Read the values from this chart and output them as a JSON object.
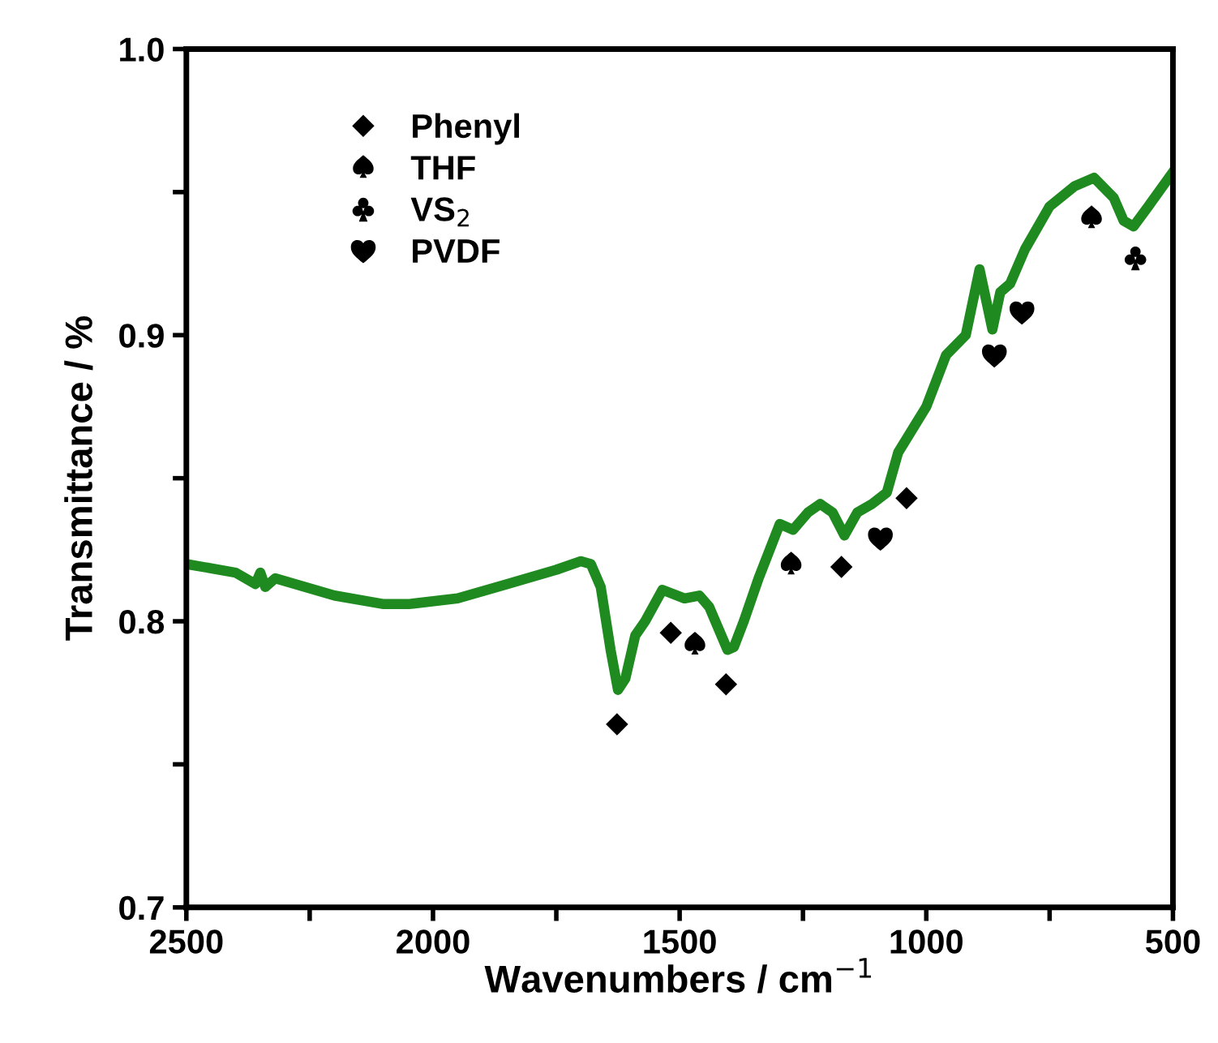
{
  "chart_data": {
    "type": "line",
    "xlabel": "Wavenumbers / cm$^{−1}$",
    "ylabel": "Transmittance / %",
    "xlim": [
      2500,
      500
    ],
    "ylim": [
      0.7,
      1.0
    ],
    "xticks": [
      2500,
      {
        "value": 2250,
        "label": null
      },
      2000,
      {
        "value": 1750,
        "label": null
      },
      1500,
      {
        "value": 1250,
        "label": null
      },
      1000,
      {
        "value": 750,
        "label": null
      },
      500
    ],
    "yticks": [
      0.7,
      {
        "value": 0.75,
        "label": null
      },
      0.8,
      {
        "value": 0.85,
        "label": null
      },
      0.9,
      {
        "value": 0.95,
        "label": null
      },
      {
        "value": 1.0,
        "label": "1.0"
      }
    ],
    "grid": false,
    "legend": "top left",
    "series": [
      {
        "color": "#1f8a1f",
        "line_style": "solid",
        "marker": "none",
        "x": [
          2500,
          2400,
          2360,
          2350,
          2340,
          2320,
          2200,
          2100,
          2050,
          1950,
          1850,
          1750,
          1700,
          1680,
          1660,
          1640,
          1625,
          1610,
          1590,
          1570,
          1535,
          1490,
          1460,
          1440,
          1403,
          1390,
          1370,
          1340,
          1297,
          1270,
          1240,
          1215,
          1190,
          1166,
          1140,
          1110,
          1080,
          1057,
          1000,
          960,
          920,
          892,
          866,
          850,
          830,
          800,
          750,
          700,
          660,
          620,
          600,
          580,
          550,
          500
        ],
        "values": [
          0.82,
          0.817,
          0.813,
          0.817,
          0.812,
          0.815,
          0.809,
          0.806,
          0.806,
          0.808,
          0.813,
          0.818,
          0.821,
          0.82,
          0.812,
          0.79,
          0.776,
          0.78,
          0.795,
          0.8,
          0.811,
          0.808,
          0.809,
          0.805,
          0.79,
          0.791,
          0.8,
          0.815,
          0.834,
          0.832,
          0.838,
          0.841,
          0.838,
          0.83,
          0.838,
          0.841,
          0.845,
          0.859,
          0.875,
          0.893,
          0.9,
          0.923,
          0.902,
          0.915,
          0.918,
          0.93,
          0.945,
          0.952,
          0.955,
          0.948,
          0.94,
          0.938,
          0.945,
          0.957
        ]
      },
      {
        "type": "scatter",
        "name": "Phenyl",
        "color": "#000000",
        "marker": "diamond",
        "x": [
          1627,
          1518,
          1406,
          1172,
          1040
        ],
        "values": [
          0.764,
          0.796,
          0.778,
          0.819,
          0.843
        ]
      },
      {
        "type": "scatter",
        "name": "THF",
        "color": "#000000",
        "x": [
          1469,
          1274,
          665
        ],
        "values": [
          0.792,
          0.82,
          0.941
        ]
      },
      {
        "type": "scatter",
        "name": "VS$_{2}$",
        "color": "#000000",
        "x": [
          576
        ],
        "values": [
          0.927
        ]
      },
      {
        "type": "scatter",
        "name": "PVDF",
        "color": "#000000",
        "x": [
          1093,
          862,
          806
        ],
        "values": [
          0.829,
          0.893,
          0.908
        ]
      }
    ]
  }
}
